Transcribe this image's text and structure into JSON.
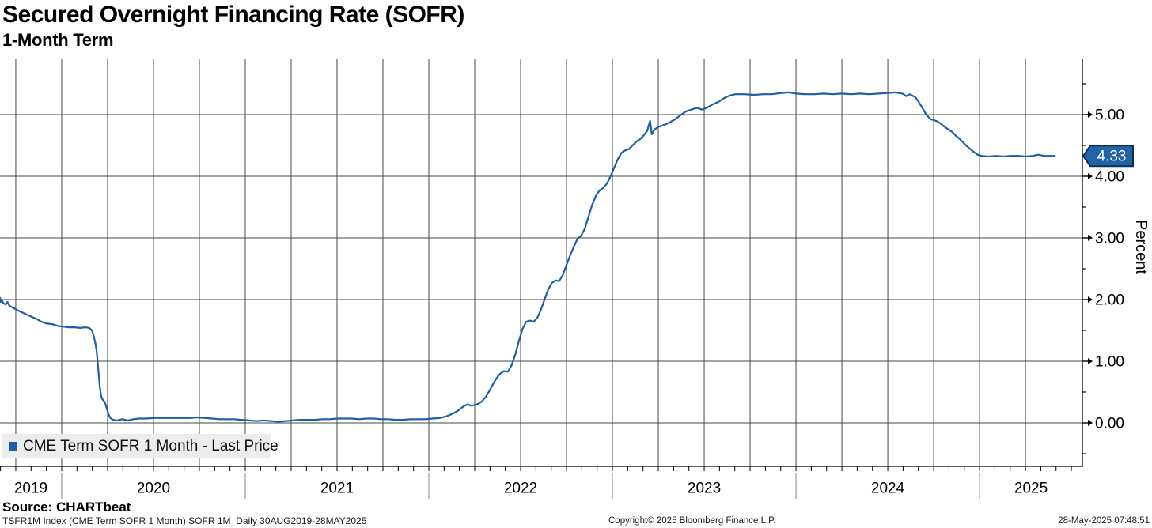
{
  "header": {
    "title": "Secured Overnight Financing Rate (SOFR)",
    "subtitle": "1-Month Term"
  },
  "legend": {
    "label": "CME Term SOFR 1 Month - Last Price",
    "marker_color": "#1d5fa5"
  },
  "footer": {
    "source": "Source: CHARTbeat",
    "note": "TSFR1M Index (CME Term SOFR 1 Month) SOFR 1M  Daily 30AUG2019-28MAY2025",
    "copyright": "Copyright© 2025 Bloomberg Finance L.P.",
    "timestamp": "28-May-2025 07:48:51"
  },
  "chart_data": {
    "type": "line",
    "title": "Secured Overnight Financing Rate (SOFR)",
    "subtitle": "1-Month Term",
    "xlabel": "",
    "ylabel": "Percent",
    "grid": true,
    "legend_position": "bottom-left",
    "colors": {
      "line": "#1d5fa5",
      "grid": "#474747",
      "axis": "#000000",
      "year_divider": "#9a9a9a",
      "badge_fill": "#2263a5",
      "badge_border": "#0a2f57",
      "badge_text": "#ffffff"
    },
    "x_domain": [
      2019.664,
      2025.56
    ],
    "y_domain": [
      -0.705,
      5.897
    ],
    "y_ticks": [
      {
        "value": 0,
        "label": "0.00"
      },
      {
        "value": 1,
        "label": "1.00"
      },
      {
        "value": 2,
        "label": "2.00"
      },
      {
        "value": 3,
        "label": "3.00"
      },
      {
        "value": 4,
        "label": "4.00"
      },
      {
        "value": 5,
        "label": "5.00"
      }
    ],
    "y_minor_ticks": [
      -0.5,
      0.5,
      1.5,
      2.5,
      3.5,
      4.5,
      5.5
    ],
    "x_ticks": [
      {
        "label": "2019",
        "from": 2019.664,
        "to": 2020.0
      },
      {
        "label": "2020",
        "from": 2020.0,
        "to": 2021.0
      },
      {
        "label": "2021",
        "from": 2021.0,
        "to": 2022.0
      },
      {
        "label": "2022",
        "from": 2022.0,
        "to": 2023.0
      },
      {
        "label": "2023",
        "from": 2023.0,
        "to": 2024.0
      },
      {
        "label": "2024",
        "from": 2024.0,
        "to": 2025.0
      },
      {
        "label": "2025",
        "from": 2025.0,
        "to": 2025.56
      }
    ],
    "x_minor_tick_step_months": 1,
    "x_grid_step_years": 0.25,
    "last_price": {
      "value": 4.33,
      "label": "4.33"
    },
    "series": [
      {
        "name": "CME Term SOFR 1 Month - Last Price",
        "color": "#1d5fa5",
        "points": [
          [
            2019.664,
            2.03
          ],
          [
            2019.668,
            1.96
          ],
          [
            2019.673,
            2.0
          ],
          [
            2019.682,
            1.94
          ],
          [
            2019.695,
            1.92
          ],
          [
            2019.705,
            1.96
          ],
          [
            2019.715,
            1.9
          ],
          [
            2019.74,
            1.86
          ],
          [
            2019.77,
            1.81
          ],
          [
            2019.8,
            1.77
          ],
          [
            2019.83,
            1.73
          ],
          [
            2019.86,
            1.69
          ],
          [
            2019.89,
            1.64
          ],
          [
            2019.92,
            1.61
          ],
          [
            2019.95,
            1.6
          ],
          [
            2019.98,
            1.57
          ],
          [
            2020.01,
            1.56
          ],
          [
            2020.04,
            1.55
          ],
          [
            2020.07,
            1.55
          ],
          [
            2020.1,
            1.54
          ],
          [
            2020.13,
            1.55
          ],
          [
            2020.15,
            1.54
          ],
          [
            2020.165,
            1.5
          ],
          [
            2020.175,
            1.4
          ],
          [
            2020.183,
            1.3
          ],
          [
            2020.19,
            1.18
          ],
          [
            2020.196,
            1.0
          ],
          [
            2020.202,
            0.78
          ],
          [
            2020.208,
            0.58
          ],
          [
            2020.214,
            0.45
          ],
          [
            2020.22,
            0.39
          ],
          [
            2020.228,
            0.36
          ],
          [
            2020.236,
            0.33
          ],
          [
            2020.245,
            0.24
          ],
          [
            2020.255,
            0.14
          ],
          [
            2020.265,
            0.08
          ],
          [
            2020.28,
            0.05
          ],
          [
            2020.3,
            0.04
          ],
          [
            2020.33,
            0.06
          ],
          [
            2020.36,
            0.04
          ],
          [
            2020.39,
            0.06
          ],
          [
            2020.42,
            0.07
          ],
          [
            2020.46,
            0.07
          ],
          [
            2020.5,
            0.08
          ],
          [
            2020.54,
            0.08
          ],
          [
            2020.58,
            0.08
          ],
          [
            2020.62,
            0.08
          ],
          [
            2020.66,
            0.08
          ],
          [
            2020.7,
            0.08
          ],
          [
            2020.74,
            0.09
          ],
          [
            2020.78,
            0.08
          ],
          [
            2020.82,
            0.07
          ],
          [
            2020.86,
            0.06
          ],
          [
            2020.9,
            0.06
          ],
          [
            2020.94,
            0.06
          ],
          [
            2020.98,
            0.05
          ],
          [
            2021.02,
            0.04
          ],
          [
            2021.06,
            0.03
          ],
          [
            2021.1,
            0.04
          ],
          [
            2021.14,
            0.03
          ],
          [
            2021.18,
            0.02
          ],
          [
            2021.22,
            0.03
          ],
          [
            2021.26,
            0.04
          ],
          [
            2021.3,
            0.05
          ],
          [
            2021.34,
            0.05
          ],
          [
            2021.38,
            0.05
          ],
          [
            2021.42,
            0.06
          ],
          [
            2021.46,
            0.06
          ],
          [
            2021.5,
            0.07
          ],
          [
            2021.54,
            0.07
          ],
          [
            2021.58,
            0.07
          ],
          [
            2021.62,
            0.06
          ],
          [
            2021.66,
            0.07
          ],
          [
            2021.7,
            0.07
          ],
          [
            2021.74,
            0.06
          ],
          [
            2021.78,
            0.06
          ],
          [
            2021.82,
            0.05
          ],
          [
            2021.86,
            0.05
          ],
          [
            2021.9,
            0.06
          ],
          [
            2021.94,
            0.06
          ],
          [
            2021.98,
            0.06
          ],
          [
            2022.02,
            0.07
          ],
          [
            2022.06,
            0.08
          ],
          [
            2022.1,
            0.11
          ],
          [
            2022.13,
            0.15
          ],
          [
            2022.16,
            0.2
          ],
          [
            2022.19,
            0.27
          ],
          [
            2022.21,
            0.3
          ],
          [
            2022.23,
            0.28
          ],
          [
            2022.25,
            0.29
          ],
          [
            2022.27,
            0.31
          ],
          [
            2022.29,
            0.35
          ],
          [
            2022.31,
            0.42
          ],
          [
            2022.33,
            0.52
          ],
          [
            2022.35,
            0.63
          ],
          [
            2022.37,
            0.73
          ],
          [
            2022.39,
            0.8
          ],
          [
            2022.41,
            0.84
          ],
          [
            2022.43,
            0.83
          ],
          [
            2022.45,
            0.93
          ],
          [
            2022.47,
            1.1
          ],
          [
            2022.49,
            1.32
          ],
          [
            2022.51,
            1.52
          ],
          [
            2022.53,
            1.64
          ],
          [
            2022.55,
            1.66
          ],
          [
            2022.57,
            1.64
          ],
          [
            2022.59,
            1.7
          ],
          [
            2022.61,
            1.83
          ],
          [
            2022.63,
            2.0
          ],
          [
            2022.65,
            2.16
          ],
          [
            2022.67,
            2.27
          ],
          [
            2022.69,
            2.31
          ],
          [
            2022.71,
            2.3
          ],
          [
            2022.73,
            2.4
          ],
          [
            2022.75,
            2.56
          ],
          [
            2022.77,
            2.72
          ],
          [
            2022.79,
            2.86
          ],
          [
            2022.81,
            2.98
          ],
          [
            2022.83,
            3.04
          ],
          [
            2022.85,
            3.15
          ],
          [
            2022.87,
            3.35
          ],
          [
            2022.89,
            3.54
          ],
          [
            2022.91,
            3.68
          ],
          [
            2022.93,
            3.77
          ],
          [
            2022.95,
            3.81
          ],
          [
            2022.97,
            3.88
          ],
          [
            2022.99,
            4.0
          ],
          [
            2023.01,
            4.14
          ],
          [
            2023.03,
            4.28
          ],
          [
            2023.05,
            4.38
          ],
          [
            2023.07,
            4.42
          ],
          [
            2023.09,
            4.44
          ],
          [
            2023.11,
            4.5
          ],
          [
            2023.13,
            4.56
          ],
          [
            2023.15,
            4.6
          ],
          [
            2023.17,
            4.66
          ],
          [
            2023.19,
            4.74
          ],
          [
            2023.205,
            4.9
          ],
          [
            2023.215,
            4.68
          ],
          [
            2023.23,
            4.76
          ],
          [
            2023.25,
            4.8
          ],
          [
            2023.28,
            4.83
          ],
          [
            2023.31,
            4.87
          ],
          [
            2023.34,
            4.92
          ],
          [
            2023.37,
            4.99
          ],
          [
            2023.4,
            5.05
          ],
          [
            2023.43,
            5.08
          ],
          [
            2023.46,
            5.11
          ],
          [
            2023.49,
            5.08
          ],
          [
            2023.52,
            5.12
          ],
          [
            2023.55,
            5.17
          ],
          [
            2023.58,
            5.21
          ],
          [
            2023.61,
            5.27
          ],
          [
            2023.64,
            5.31
          ],
          [
            2023.67,
            5.33
          ],
          [
            2023.72,
            5.33
          ],
          [
            2023.77,
            5.32
          ],
          [
            2023.82,
            5.33
          ],
          [
            2023.87,
            5.33
          ],
          [
            2023.92,
            5.35
          ],
          [
            2023.96,
            5.36
          ],
          [
            2024.0,
            5.34
          ],
          [
            2024.05,
            5.33
          ],
          [
            2024.1,
            5.33
          ],
          [
            2024.15,
            5.34
          ],
          [
            2024.2,
            5.33
          ],
          [
            2024.25,
            5.34
          ],
          [
            2024.3,
            5.33
          ],
          [
            2024.35,
            5.34
          ],
          [
            2024.4,
            5.33
          ],
          [
            2024.45,
            5.34
          ],
          [
            2024.5,
            5.35
          ],
          [
            2024.54,
            5.36
          ],
          [
            2024.58,
            5.34
          ],
          [
            2024.6,
            5.3
          ],
          [
            2024.62,
            5.33
          ],
          [
            2024.65,
            5.28
          ],
          [
            2024.67,
            5.2
          ],
          [
            2024.69,
            5.1
          ],
          [
            2024.71,
            5.0
          ],
          [
            2024.73,
            4.93
          ],
          [
            2024.75,
            4.91
          ],
          [
            2024.77,
            4.89
          ],
          [
            2024.79,
            4.85
          ],
          [
            2024.81,
            4.8
          ],
          [
            2024.83,
            4.76
          ],
          [
            2024.85,
            4.72
          ],
          [
            2024.87,
            4.66
          ],
          [
            2024.89,
            4.61
          ],
          [
            2024.91,
            4.55
          ],
          [
            2024.93,
            4.49
          ],
          [
            2024.95,
            4.44
          ],
          [
            2024.97,
            4.39
          ],
          [
            2024.99,
            4.35
          ],
          [
            2025.01,
            4.33
          ],
          [
            2025.05,
            4.32
          ],
          [
            2025.09,
            4.33
          ],
          [
            2025.13,
            4.32
          ],
          [
            2025.17,
            4.33
          ],
          [
            2025.21,
            4.33
          ],
          [
            2025.25,
            4.32
          ],
          [
            2025.29,
            4.33
          ],
          [
            2025.32,
            4.35
          ],
          [
            2025.35,
            4.33
          ],
          [
            2025.38,
            4.33
          ],
          [
            2025.41,
            4.33
          ]
        ]
      }
    ]
  }
}
